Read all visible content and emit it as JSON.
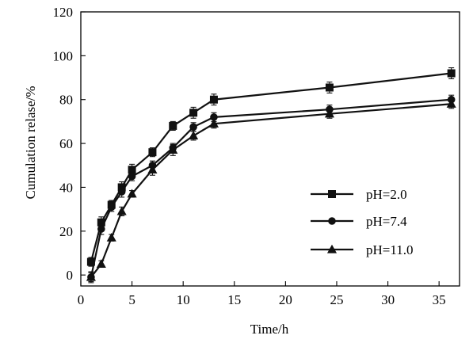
{
  "chart_data": {
    "type": "line",
    "xlabel": "Time/h",
    "ylabel": "Cumulation relase/%",
    "xlim": [
      0,
      37
    ],
    "ylim": [
      -5,
      120
    ],
    "xticks": [
      0,
      5,
      10,
      15,
      20,
      25,
      30,
      35
    ],
    "yticks": [
      0,
      20,
      40,
      60,
      80,
      100,
      120
    ],
    "grid": false,
    "legend_position": "lower-right",
    "series": [
      {
        "name": "pH=2.0",
        "marker": "square",
        "x": [
          1,
          2,
          3,
          4,
          5,
          7,
          9,
          11,
          13,
          24.3,
          36.2
        ],
        "y": [
          6,
          24,
          32,
          40,
          48,
          56,
          68,
          74,
          80,
          85.5,
          92
        ],
        "err": [
          2,
          2.5,
          2,
          2.5,
          2.5,
          2,
          2,
          2.5,
          2.5,
          2.5,
          2.5
        ]
      },
      {
        "name": "pH=7.4",
        "marker": "circle",
        "x": [
          1,
          2,
          3,
          4,
          5,
          7,
          9,
          11,
          13,
          24.3,
          36.2
        ],
        "y": [
          -1,
          21,
          31,
          38,
          45,
          50,
          58,
          67.5,
          72,
          75.5,
          80
        ],
        "err": [
          2.5,
          2.5,
          2,
          2.5,
          2,
          2,
          2,
          2,
          2,
          2,
          2
        ]
      },
      {
        "name": "pH=11.0",
        "marker": "triangle",
        "x": [
          1,
          2,
          3,
          4,
          5,
          7,
          9,
          11,
          13,
          24.3,
          36.2
        ],
        "y": [
          -1,
          5,
          17,
          29,
          37,
          48,
          57,
          63.5,
          69,
          73.5,
          78
        ],
        "err": [
          2,
          1.5,
          1.5,
          2,
          1.5,
          2.5,
          2.5,
          2,
          2,
          2,
          2
        ]
      }
    ]
  }
}
